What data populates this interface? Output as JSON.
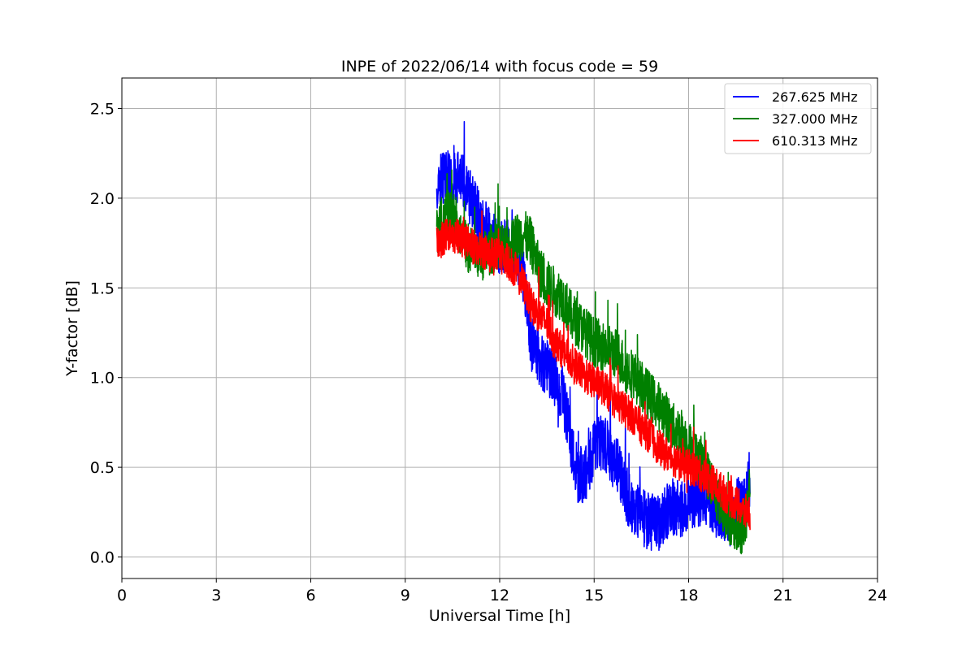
{
  "chart_data": {
    "type": "line",
    "title": "INPE of 2022/06/14 with focus code = 59",
    "xlabel": "Universal Time [h]",
    "ylabel": "Y-factor [dB]",
    "xlim": [
      0,
      24
    ],
    "ylim": [
      -0.12,
      2.67
    ],
    "xticks": [
      0,
      3,
      6,
      9,
      12,
      15,
      18,
      21,
      24
    ],
    "xtick_labels": [
      "0",
      "3",
      "6",
      "9",
      "12",
      "15",
      "18",
      "21",
      "24"
    ],
    "yticks": [
      0.0,
      0.5,
      1.0,
      1.5,
      2.0,
      2.5
    ],
    "ytick_labels": [
      "0.0",
      "0.5",
      "1.0",
      "1.5",
      "2.0",
      "2.5"
    ],
    "grid": true,
    "legend_position": "top-right",
    "series": [
      {
        "name": "267.625 MHz",
        "color": "#0000ff",
        "x": [
          10.0,
          10.25,
          10.5,
          10.75,
          11.0,
          11.25,
          11.5,
          11.75,
          12.0,
          12.25,
          12.5,
          12.75,
          13.0,
          13.25,
          13.5,
          13.75,
          14.0,
          14.25,
          14.5,
          14.75,
          15.0,
          15.25,
          15.5,
          15.75,
          16.0,
          16.25,
          16.5,
          16.75,
          17.0,
          17.25,
          17.5,
          17.75,
          18.0,
          18.25,
          18.5,
          18.75,
          19.0,
          19.25,
          19.5,
          19.75,
          19.95
        ],
        "y": [
          2.1,
          2.13,
          2.08,
          2.12,
          2.02,
          1.92,
          1.85,
          1.78,
          1.73,
          1.72,
          1.7,
          1.57,
          1.2,
          1.12,
          1.05,
          1.0,
          0.9,
          0.65,
          0.45,
          0.48,
          0.6,
          0.65,
          0.58,
          0.5,
          0.35,
          0.28,
          0.22,
          0.2,
          0.18,
          0.24,
          0.28,
          0.26,
          0.3,
          0.32,
          0.34,
          0.3,
          0.24,
          0.2,
          0.28,
          0.3,
          0.45
        ],
        "noise": 0.16
      },
      {
        "name": "327.000 MHz",
        "color": "#008000",
        "x": [
          10.0,
          10.25,
          10.5,
          10.75,
          11.0,
          11.25,
          11.5,
          11.75,
          12.0,
          12.25,
          12.5,
          12.75,
          13.0,
          13.25,
          13.5,
          13.75,
          14.0,
          14.25,
          14.5,
          14.75,
          15.0,
          15.25,
          15.5,
          15.75,
          16.0,
          16.25,
          16.5,
          16.75,
          17.0,
          17.25,
          17.5,
          17.75,
          18.0,
          18.25,
          18.5,
          18.75,
          19.0,
          19.25,
          19.5,
          19.75,
          19.95
        ],
        "y": [
          1.8,
          1.92,
          1.9,
          1.82,
          1.72,
          1.68,
          1.68,
          1.72,
          1.72,
          1.7,
          1.78,
          1.8,
          1.75,
          1.6,
          1.52,
          1.48,
          1.45,
          1.35,
          1.3,
          1.25,
          1.2,
          1.18,
          1.15,
          1.13,
          1.05,
          1.02,
          0.95,
          0.9,
          0.85,
          0.8,
          0.72,
          0.7,
          0.62,
          0.58,
          0.5,
          0.4,
          0.3,
          0.22,
          0.15,
          0.15,
          0.4
        ],
        "noise": 0.14
      },
      {
        "name": "610.313 MHz",
        "color": "#ff0000",
        "x": [
          10.0,
          10.25,
          10.5,
          10.75,
          11.0,
          11.25,
          11.5,
          11.75,
          12.0,
          12.25,
          12.5,
          12.75,
          13.0,
          13.25,
          13.5,
          13.75,
          14.0,
          14.25,
          14.5,
          14.75,
          15.0,
          15.25,
          15.5,
          15.75,
          16.0,
          16.25,
          16.5,
          16.75,
          17.0,
          17.25,
          17.5,
          17.75,
          18.0,
          18.25,
          18.5,
          18.75,
          19.0,
          19.25,
          19.5,
          19.75,
          19.95
        ],
        "y": [
          1.75,
          1.78,
          1.8,
          1.78,
          1.75,
          1.72,
          1.7,
          1.68,
          1.68,
          1.65,
          1.6,
          1.52,
          1.4,
          1.35,
          1.3,
          1.2,
          1.15,
          1.1,
          1.05,
          1.0,
          0.98,
          0.95,
          0.9,
          0.85,
          0.82,
          0.78,
          0.72,
          0.68,
          0.62,
          0.58,
          0.55,
          0.52,
          0.5,
          0.48,
          0.45,
          0.42,
          0.38,
          0.33,
          0.3,
          0.25,
          0.25
        ],
        "noise": 0.1
      }
    ]
  }
}
